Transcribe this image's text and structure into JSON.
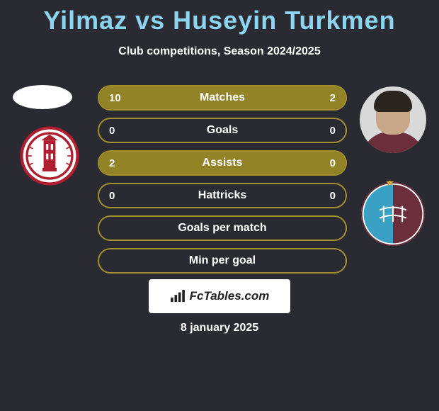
{
  "title": "Yilmaz vs Huseyin Turkmen",
  "subtitle": "Club competitions, Season 2024/2025",
  "date": "8 january 2025",
  "brand": {
    "label": "FcTables.com",
    "bg": "#ffffff",
    "text_color": "#222222"
  },
  "colors": {
    "background": "#2a2a33",
    "title_color": "#8dd4f0",
    "text_color": "#ffffff",
    "bar_border": "#a2902e",
    "bar_fill": "#928327"
  },
  "bars": [
    {
      "label": "Matches",
      "left": "10",
      "right": "2",
      "left_pct": 83,
      "right_pct": 17,
      "show_left": true,
      "show_right": true
    },
    {
      "label": "Goals",
      "left": "0",
      "right": "0",
      "left_pct": 0,
      "right_pct": 0,
      "show_left": true,
      "show_right": true
    },
    {
      "label": "Assists",
      "left": "2",
      "right": "0",
      "left_pct": 100,
      "right_pct": 0,
      "show_left": true,
      "show_right": true
    },
    {
      "label": "Hattricks",
      "left": "0",
      "right": "0",
      "left_pct": 0,
      "right_pct": 0,
      "show_left": true,
      "show_right": true
    },
    {
      "label": "Goals per match",
      "left": "",
      "right": "",
      "left_pct": 0,
      "right_pct": 0,
      "show_left": false,
      "show_right": false
    },
    {
      "label": "Min per goal",
      "left": "",
      "right": "",
      "left_pct": 0,
      "right_pct": 0,
      "show_left": false,
      "show_right": false
    }
  ],
  "club1": {
    "outer_stroke": "#b01d2e",
    "inner_bg": "#ffffff",
    "tower_color": "#b01d2e"
  },
  "club2": {
    "bg": "#ffffff",
    "left_color": "#3aa0c4",
    "right_color": "#6b2e3a",
    "star_color": "#d4a63a"
  }
}
